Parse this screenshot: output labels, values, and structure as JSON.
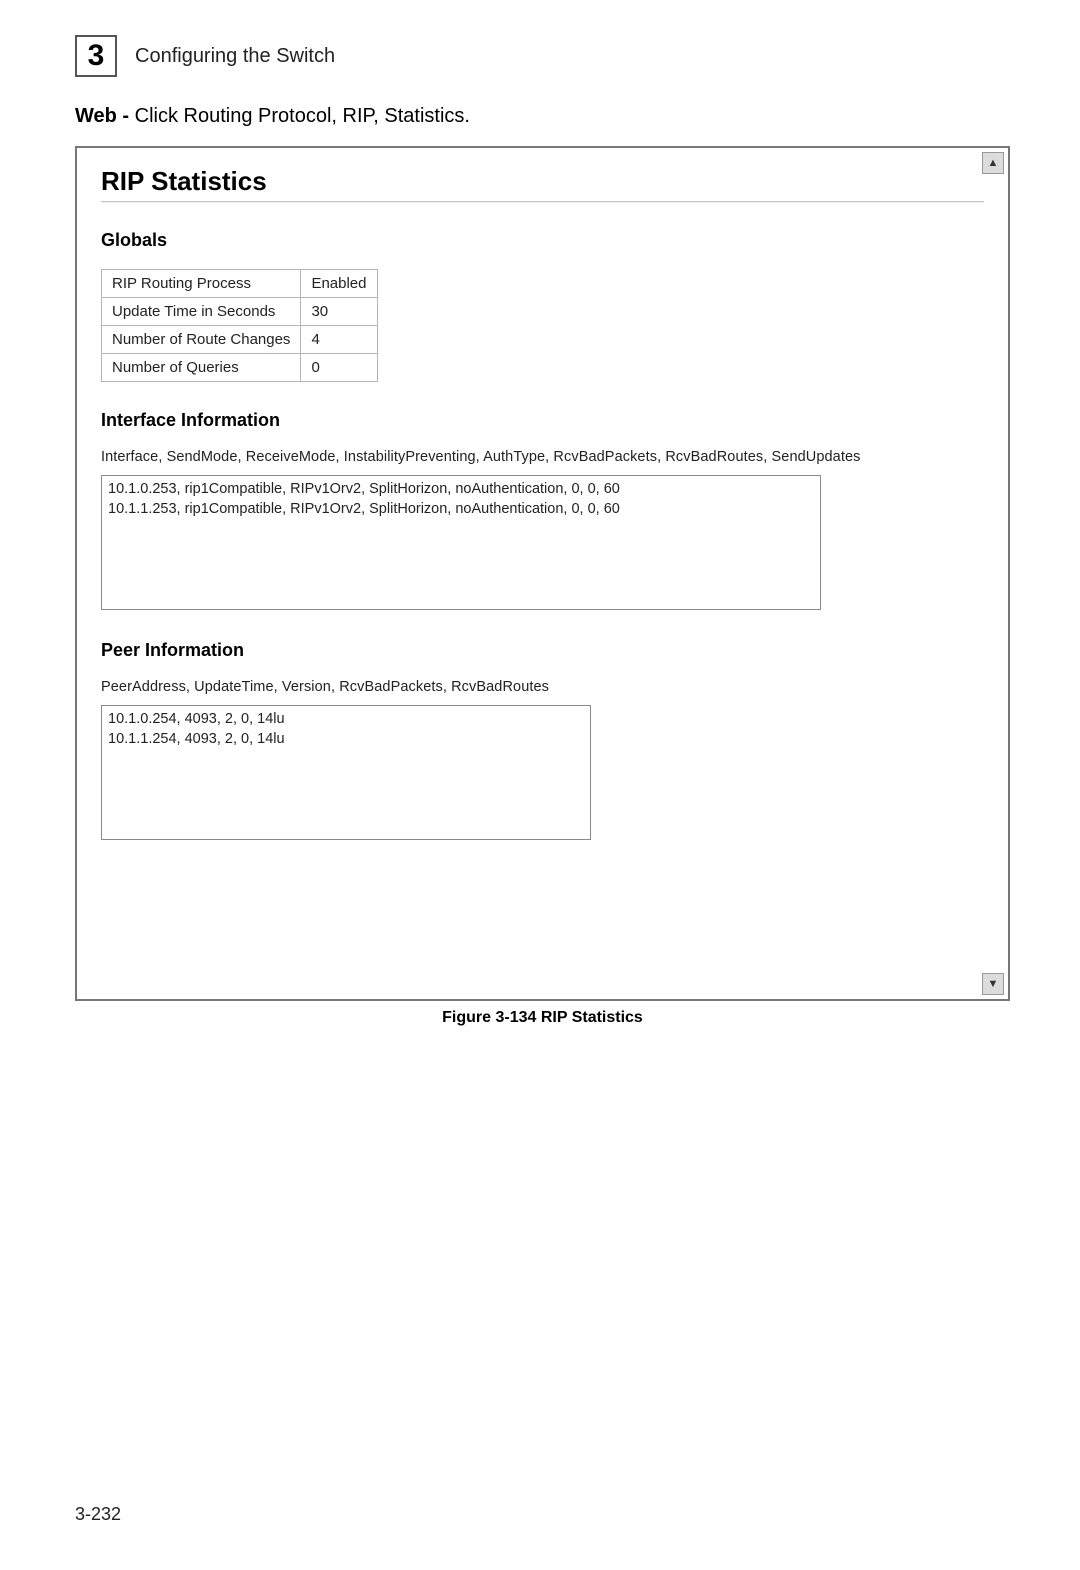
{
  "chapter": {
    "number": "3",
    "title": "Configuring the Switch"
  },
  "nav": {
    "prefix_bold": "Web - ",
    "text": "Click Routing Protocol, RIP, Statistics."
  },
  "panel": {
    "title": "RIP Statistics",
    "globals": {
      "heading": "Globals",
      "rows": [
        {
          "label": "RIP Routing Process",
          "value": "Enabled"
        },
        {
          "label": "Update Time in Seconds",
          "value": "30"
        },
        {
          "label": "Number of Route Changes",
          "value": "4"
        },
        {
          "label": "Number of Queries",
          "value": "0"
        }
      ]
    },
    "interface": {
      "heading": "Interface Information",
      "columns_line": "Interface, SendMode, ReceiveMode, InstabilityPreventing, AuthType, RcvBadPackets, RcvBadRoutes, SendUpdates",
      "rows": [
        "10.1.0.253, rip1Compatible, RIPv1Orv2, SplitHorizon, noAuthentication, 0, 0, 60",
        "10.1.1.253, rip1Compatible, RIPv1Orv2, SplitHorizon, noAuthentication, 0, 0, 60"
      ]
    },
    "peer": {
      "heading": "Peer Information",
      "columns_line": "PeerAddress, UpdateTime, Version, RcvBadPackets, RcvBadRoutes",
      "rows": [
        "10.1.0.254, 4093, 2, 0, 14lu",
        "10.1.1.254, 4093, 2, 0, 14lu"
      ]
    }
  },
  "caption": "Figure 3-134   RIP Statistics",
  "page_number": "3-232",
  "scroll": {
    "up": "▲",
    "down": "▼"
  },
  "colors": {
    "border": "#777777",
    "cell_border": "#b5b5b5",
    "text": "#000000",
    "bg": "#ffffff"
  }
}
